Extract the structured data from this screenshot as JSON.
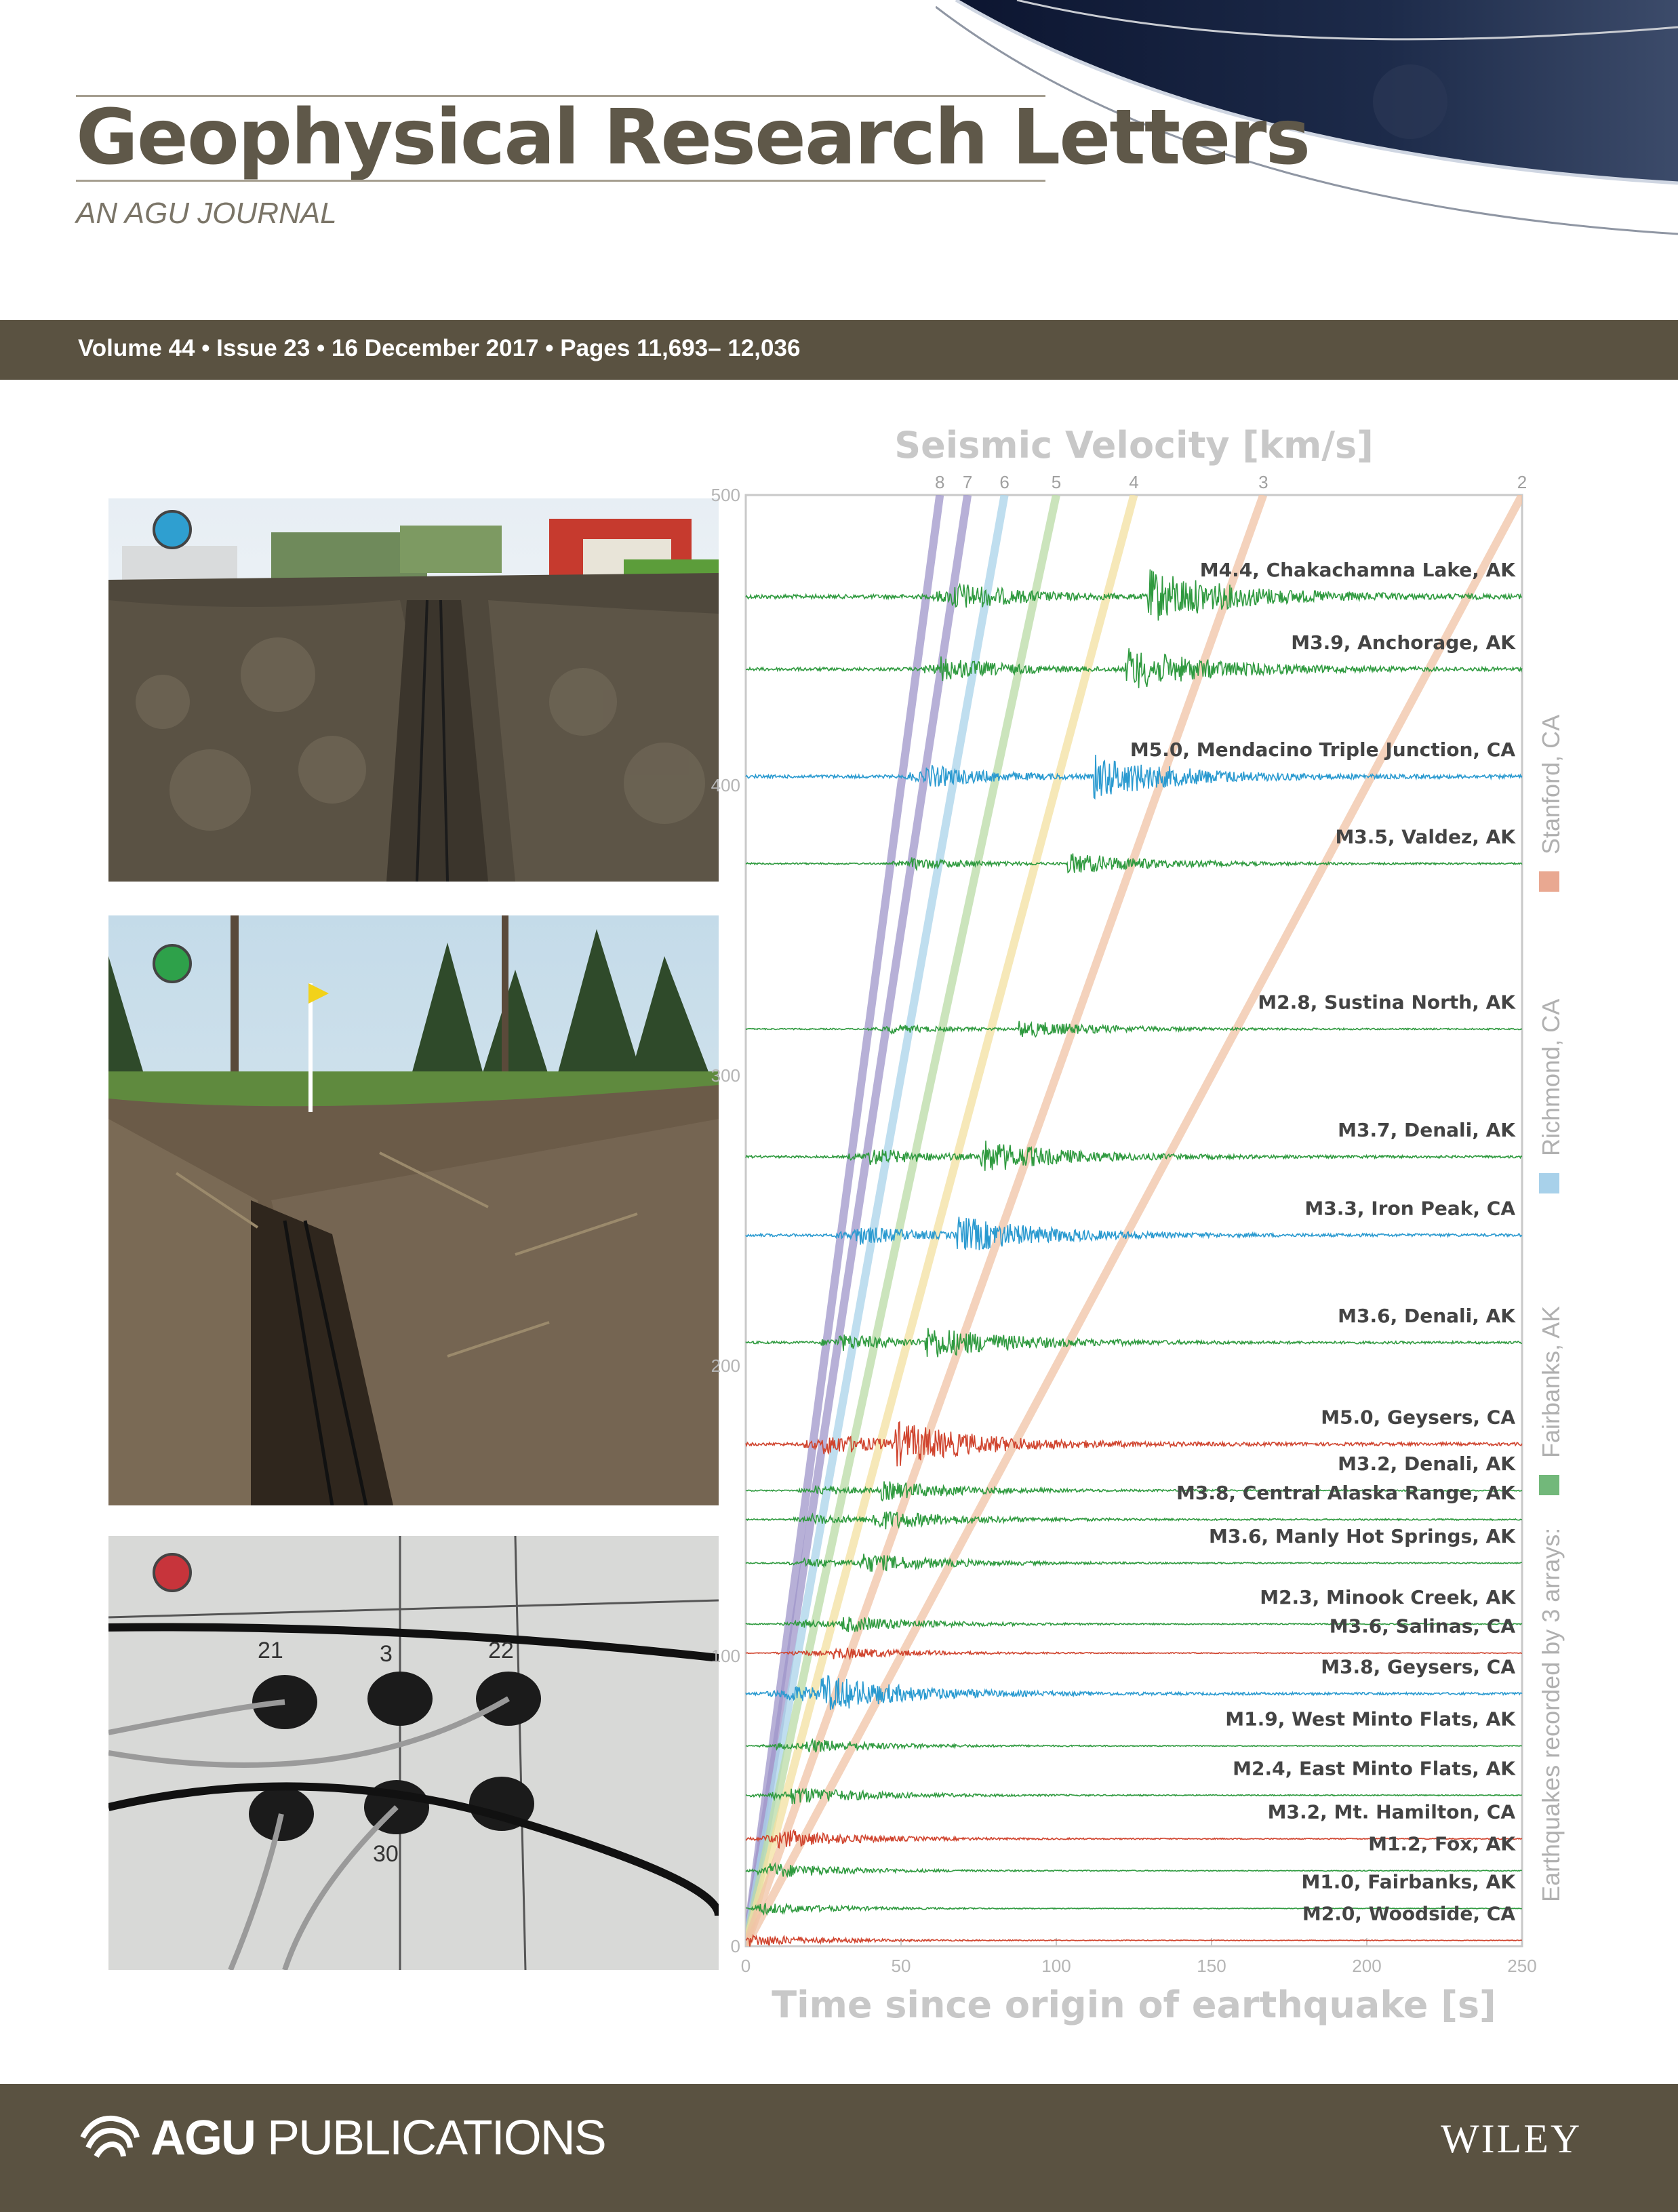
{
  "header": {
    "title": "Geophysical Research Letters",
    "subtitle": "AN AGU JOURNAL",
    "issue_line": "Volume 44 • Issue 23 • 16 December 2017 • Pages 11,693– 12,036"
  },
  "photos": [
    {
      "marker_color": "#2f9fd0"
    },
    {
      "marker_color": "#2ea14a"
    },
    {
      "marker_color": "#c7343b"
    }
  ],
  "chart_data": {
    "type": "line",
    "title": "Seismic Velocity [km/s]",
    "xlabel": "Time since origin of earthquake [s]",
    "ylabel": "",
    "xlim": [
      0,
      250
    ],
    "ylim": [
      0,
      500
    ],
    "x_ticks": [
      0,
      50,
      100,
      150,
      200,
      250
    ],
    "y_ticks": [
      0,
      100,
      200,
      300,
      400,
      500
    ],
    "velocity_labels": [
      "8",
      "7",
      "6",
      "5",
      "4",
      "3",
      "2"
    ],
    "velocity_lines": [
      {
        "label": "8",
        "v": 8,
        "color": "#9f95c9"
      },
      {
        "label": "7",
        "v": 7,
        "color": "#9f95c9"
      },
      {
        "label": "6",
        "v": 6,
        "color": "#a9d3ea"
      },
      {
        "label": "5",
        "v": 5,
        "color": "#b9dba5"
      },
      {
        "label": "4",
        "v": 4,
        "color": "#f3e0a0"
      },
      {
        "label": "3",
        "v": 3,
        "color": "#f0c3a6"
      },
      {
        "label": "2",
        "v": 2,
        "color": "#f0c3a6"
      }
    ],
    "legend": {
      "title": "Earthquakes recorded by 3 arrays:",
      "placement": "right-vertical",
      "entries": [
        {
          "name": "Fairbanks, AK",
          "color": "#72b87a"
        },
        {
          "name": "Richmond, CA",
          "color": "#a8d1ea"
        },
        {
          "name": "Stanford, CA",
          "color": "#e9a891"
        }
      ]
    },
    "colors": {
      "Fairbanks": "#2f9a3f",
      "Richmond": "#2a9ad0",
      "Stanford": "#d0442e"
    },
    "series": [
      {
        "name": "M4.4, Chakachamna Lake, AK",
        "array": "Fairbanks",
        "distance": 465,
        "amp": 38
      },
      {
        "name": "M3.9, Anchorage, AK",
        "array": "Fairbanks",
        "distance": 440,
        "amp": 30
      },
      {
        "name": "M5.0, Mendacino Triple Junction, CA",
        "array": "Richmond",
        "distance": 403,
        "amp": 30
      },
      {
        "name": "M3.5, Valdez, AK",
        "array": "Fairbanks",
        "distance": 373,
        "amp": 15
      },
      {
        "name": "M2.8, Sustina North, AK",
        "array": "Fairbanks",
        "distance": 316,
        "amp": 12
      },
      {
        "name": "M3.7, Denali, AK",
        "array": "Fairbanks",
        "distance": 272,
        "amp": 22
      },
      {
        "name": "M3.3, Iron Peak, CA",
        "array": "Richmond",
        "distance": 245,
        "amp": 25
      },
      {
        "name": "M3.6, Denali, AK",
        "array": "Fairbanks",
        "distance": 208,
        "amp": 22
      },
      {
        "name": "M5.0, Geysers, CA",
        "array": "Stanford",
        "distance": 173,
        "amp": 28
      },
      {
        "name": "M3.2, Denali, AK",
        "array": "Fairbanks",
        "distance": 157,
        "amp": 12
      },
      {
        "name": "M3.8, Central Alaska Range, AK",
        "array": "Fairbanks",
        "distance": 147,
        "amp": 13
      },
      {
        "name": "M3.6, Manly Hot Springs, AK",
        "array": "Fairbanks",
        "distance": 132,
        "amp": 12
      },
      {
        "name": "M2.3, Minook Creek, AK",
        "array": "Fairbanks",
        "distance": 111,
        "amp": 10
      },
      {
        "name": "M3.6, Salinas, CA",
        "array": "Stanford",
        "distance": 101,
        "amp": 7
      },
      {
        "name": "M3.8, Geysers, CA",
        "array": "Richmond",
        "distance": 87,
        "amp": 22
      },
      {
        "name": "M1.9, West Minto Flats, AK",
        "array": "Fairbanks",
        "distance": 69,
        "amp": 8
      },
      {
        "name": "M2.4, East Minto Flats, AK",
        "array": "Fairbanks",
        "distance": 52,
        "amp": 10
      },
      {
        "name": "M3.2, Mt. Hamilton, CA",
        "array": "Stanford",
        "distance": 37,
        "amp": 10
      },
      {
        "name": "M1.2, Fox, AK",
        "array": "Fairbanks",
        "distance": 26,
        "amp": 8
      },
      {
        "name": "M1.0, Fairbanks, AK",
        "array": "Fairbanks",
        "distance": 13,
        "amp": 6
      },
      {
        "name": "M2.0, Woodside, CA",
        "array": "Stanford",
        "distance": 2,
        "amp": 6
      }
    ]
  },
  "footer": {
    "agu_bold": "AGU",
    "agu_rest": " PUBLICATIONS",
    "wiley": "WILEY"
  }
}
